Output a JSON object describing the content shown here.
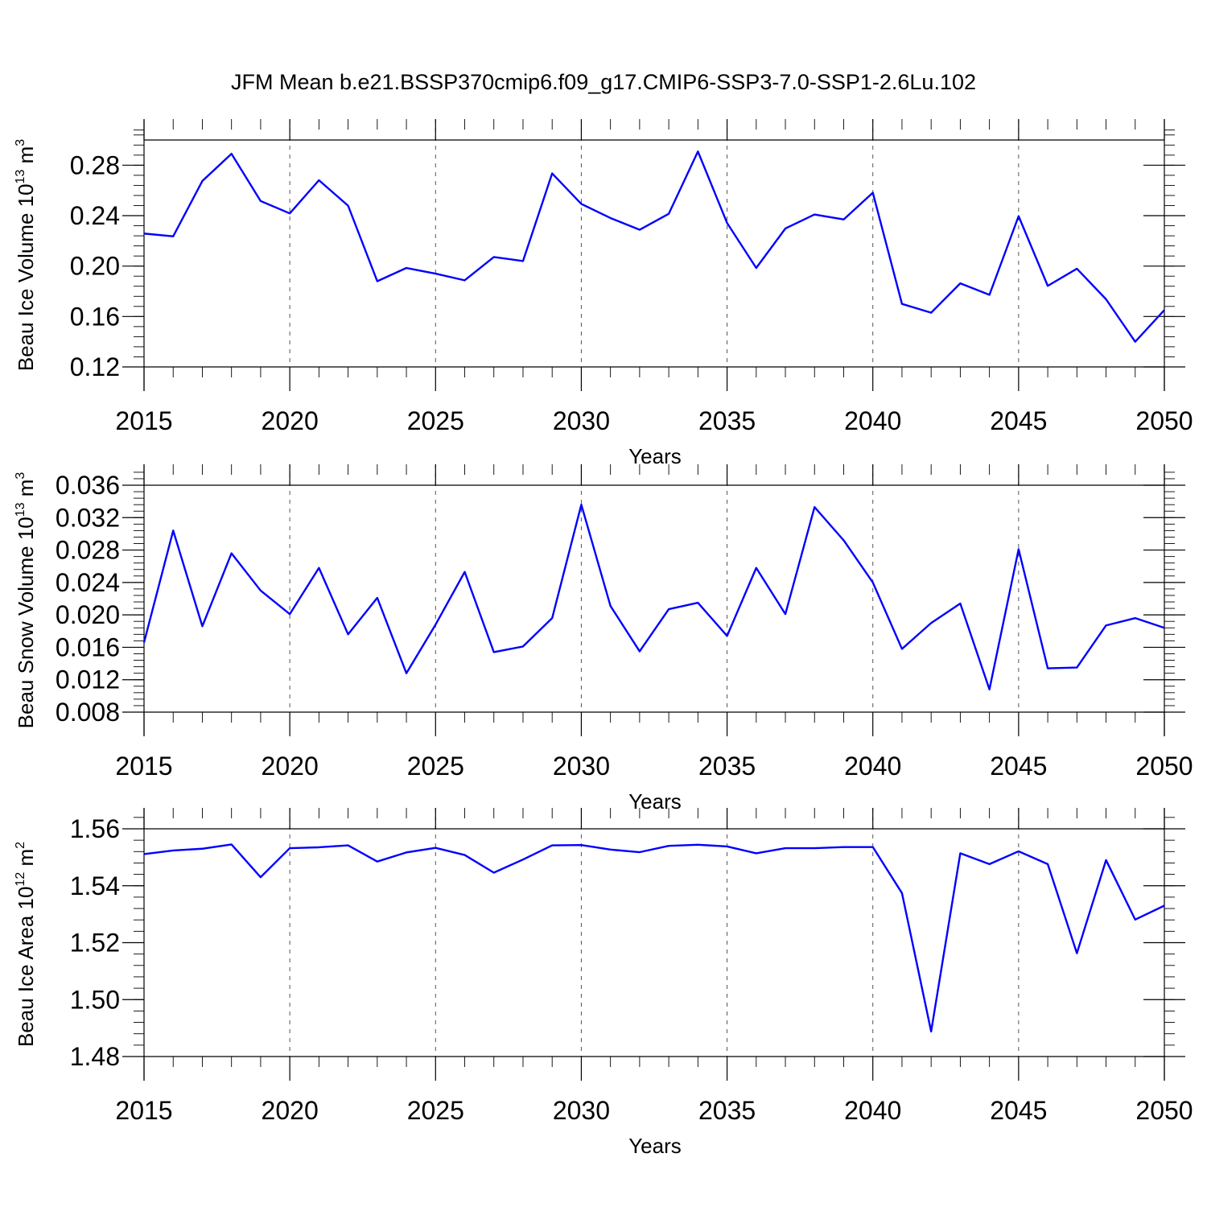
{
  "title": "JFM Mean b.e21.BSSP370cmip6.f09_g17.CMIP6-SSP3-7.0-SSP1-2.6Lu.102",
  "colors": {
    "line": "#0000ff",
    "axis": "#000000",
    "grid": "#555555"
  },
  "chart_data": [
    {
      "type": "line",
      "ylabel": "Beau Ice Volume 10",
      "ylabel_sup": "13",
      "ylabel_unit": " m",
      "ylabel_unit_sup": "3",
      "xlabel": "Years",
      "xlim": [
        2015,
        2050
      ],
      "ylim": [
        0.12,
        0.3
      ],
      "yticks": [
        0.12,
        0.16,
        0.2,
        0.24,
        0.28
      ],
      "ytick_labels": [
        "0.12",
        "0.16",
        "0.20",
        "0.24",
        "0.28"
      ],
      "yminor_step": 0.008,
      "xticks": [
        2015,
        2020,
        2025,
        2030,
        2035,
        2040,
        2045,
        2050
      ],
      "xtick_labels": [
        "2015",
        "2020",
        "2025",
        "2030",
        "2035",
        "2040",
        "2045",
        "2050"
      ],
      "x": [
        2015,
        2016,
        2017,
        2018,
        2019,
        2020,
        2021,
        2022,
        2023,
        2024,
        2025,
        2026,
        2027,
        2028,
        2029,
        2030,
        2031,
        2032,
        2033,
        2034,
        2035,
        2036,
        2037,
        2038,
        2039,
        2040,
        2041,
        2042,
        2043,
        2044,
        2045,
        2046,
        2047,
        2048,
        2049,
        2050
      ],
      "series": [
        {
          "name": "Beau Ice Volume",
          "values": [
            0.2258,
            0.2236,
            0.2675,
            0.2891,
            0.2516,
            0.2418,
            0.2681,
            0.2479,
            0.188,
            0.1985,
            0.194,
            0.1887,
            0.2072,
            0.204,
            0.2735,
            0.2493,
            0.2381,
            0.2288,
            0.2415,
            0.2909,
            0.2342,
            0.1985,
            0.2298,
            0.2409,
            0.237,
            0.2582,
            0.17,
            0.163,
            0.1863,
            0.1772,
            0.2396,
            0.1843,
            0.1979,
            0.1737,
            0.14,
            0.1651
          ]
        }
      ]
    },
    {
      "type": "line",
      "ylabel": "Beau Snow Volume 10",
      "ylabel_sup": "13",
      "ylabel_unit": " m",
      "ylabel_unit_sup": "3",
      "xlabel": "Years",
      "xlim": [
        2015,
        2050
      ],
      "ylim": [
        0.008,
        0.036
      ],
      "yticks": [
        0.008,
        0.012,
        0.016,
        0.02,
        0.024,
        0.028,
        0.032,
        0.036
      ],
      "ytick_labels": [
        "0.008",
        "0.012",
        "0.016",
        "0.020",
        "0.024",
        "0.028",
        "0.032",
        "0.036"
      ],
      "yminor_step": 0.0008,
      "xticks": [
        2015,
        2020,
        2025,
        2030,
        2035,
        2040,
        2045,
        2050
      ],
      "xtick_labels": [
        "2015",
        "2020",
        "2025",
        "2030",
        "2035",
        "2040",
        "2045",
        "2050"
      ],
      "x": [
        2015,
        2016,
        2017,
        2018,
        2019,
        2020,
        2021,
        2022,
        2023,
        2024,
        2025,
        2026,
        2027,
        2028,
        2029,
        2030,
        2031,
        2032,
        2033,
        2034,
        2035,
        2036,
        2037,
        2038,
        2039,
        2040,
        2041,
        2042,
        2043,
        2044,
        2045,
        2046,
        2047,
        2048,
        2049,
        2050
      ],
      "series": [
        {
          "name": "Beau Snow Volume",
          "values": [
            0.0166,
            0.0304,
            0.0186,
            0.0276,
            0.023,
            0.0201,
            0.0258,
            0.0176,
            0.0221,
            0.0128,
            0.0188,
            0.0253,
            0.0154,
            0.0161,
            0.0196,
            0.0336,
            0.0211,
            0.0155,
            0.0207,
            0.0215,
            0.0174,
            0.0258,
            0.0201,
            0.0333,
            0.0292,
            0.024,
            0.0158,
            0.019,
            0.0214,
            0.0108,
            0.0281,
            0.0134,
            0.0135,
            0.0187,
            0.0196,
            0.0184
          ]
        }
      ]
    },
    {
      "type": "line",
      "ylabel": "Beau Ice Area 10",
      "ylabel_sup": "12",
      "ylabel_unit": " m",
      "ylabel_unit_sup": "2",
      "xlabel": "Years",
      "xlim": [
        2015,
        2050
      ],
      "ylim": [
        1.48,
        1.56
      ],
      "yticks": [
        1.48,
        1.5,
        1.52,
        1.54,
        1.56
      ],
      "ytick_labels": [
        "1.48",
        "1.50",
        "1.52",
        "1.54",
        "1.56"
      ],
      "yminor_step": 0.004,
      "xticks": [
        2015,
        2020,
        2025,
        2030,
        2035,
        2040,
        2045,
        2050
      ],
      "xtick_labels": [
        "2015",
        "2020",
        "2025",
        "2030",
        "2035",
        "2040",
        "2045",
        "2050"
      ],
      "x": [
        2015,
        2016,
        2017,
        2018,
        2019,
        2020,
        2021,
        2022,
        2023,
        2024,
        2025,
        2026,
        2027,
        2028,
        2029,
        2030,
        2031,
        2032,
        2033,
        2034,
        2035,
        2036,
        2037,
        2038,
        2039,
        2040,
        2041,
        2042,
        2043,
        2044,
        2045,
        2046,
        2047,
        2048,
        2049,
        2050
      ],
      "series": [
        {
          "name": "Beau Ice Area",
          "values": [
            1.5511,
            1.5524,
            1.553,
            1.5545,
            1.543,
            1.5532,
            1.5535,
            1.5542,
            1.5485,
            1.5517,
            1.5533,
            1.5508,
            1.5446,
            1.5492,
            1.5542,
            1.5543,
            1.5527,
            1.5518,
            1.554,
            1.5544,
            1.5538,
            1.5514,
            1.5532,
            1.5532,
            1.5536,
            1.5536,
            1.5374,
            1.4888,
            1.5514,
            1.5476,
            1.5521,
            1.5476,
            1.5163,
            1.549,
            1.5281,
            1.533
          ]
        }
      ]
    }
  ]
}
